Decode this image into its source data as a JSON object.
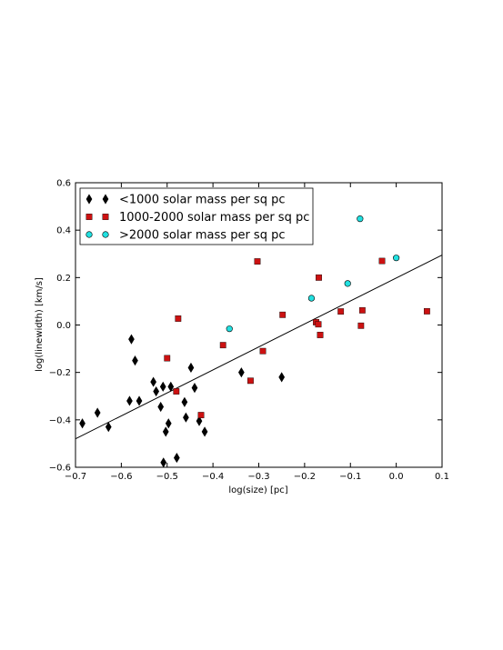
{
  "chart_data": {
    "type": "scatter",
    "xlabel": "log(size) [pc]",
    "ylabel": "log(linewidth) [km/s]",
    "xlim": [
      -0.7,
      0.1
    ],
    "ylim": [
      -0.6,
      0.6
    ],
    "xticks": [
      "−0.7",
      "−0.6",
      "−0.5",
      "−0.4",
      "−0.3",
      "−0.2",
      "−0.1",
      "0.0",
      "0.1"
    ],
    "yticks": [
      "−0.6",
      "−0.4",
      "−0.2",
      "0.0",
      "0.2",
      "0.4",
      "0.6"
    ],
    "grid": false,
    "legend_position": "top-left",
    "series": [
      {
        "name": "<1000 solar mass per sq pc",
        "marker": "diamond",
        "color": "#000000",
        "points": [
          [
            -0.685,
            -0.415
          ],
          [
            -0.652,
            -0.37
          ],
          [
            -0.628,
            -0.43
          ],
          [
            -0.582,
            -0.32
          ],
          [
            -0.578,
            -0.06
          ],
          [
            -0.57,
            -0.15
          ],
          [
            -0.561,
            -0.32
          ],
          [
            -0.53,
            -0.24
          ],
          [
            -0.524,
            -0.28
          ],
          [
            -0.514,
            -0.345
          ],
          [
            -0.509,
            -0.26
          ],
          [
            -0.508,
            -0.58
          ],
          [
            -0.503,
            -0.45
          ],
          [
            -0.497,
            -0.415
          ],
          [
            -0.492,
            -0.26
          ],
          [
            -0.479,
            -0.56
          ],
          [
            -0.462,
            -0.325
          ],
          [
            -0.459,
            -0.39
          ],
          [
            -0.448,
            -0.18
          ],
          [
            -0.44,
            -0.265
          ],
          [
            -0.43,
            -0.405
          ],
          [
            -0.418,
            -0.45
          ],
          [
            -0.338,
            -0.2
          ],
          [
            -0.25,
            -0.22
          ]
        ]
      },
      {
        "name": "1000-2000 solar mass per sq pc",
        "marker": "square",
        "color": "#cc1111",
        "points": [
          [
            -0.5,
            -0.14
          ],
          [
            -0.48,
            -0.28
          ],
          [
            -0.476,
            0.027
          ],
          [
            -0.426,
            -0.38
          ],
          [
            -0.378,
            -0.085
          ],
          [
            -0.318,
            -0.235
          ],
          [
            -0.303,
            0.268
          ],
          [
            -0.291,
            -0.11
          ],
          [
            -0.248,
            0.043
          ],
          [
            -0.175,
            0.012
          ],
          [
            -0.17,
            0.003
          ],
          [
            -0.169,
            0.2
          ],
          [
            -0.166,
            -0.042
          ],
          [
            -0.121,
            0.057
          ],
          [
            -0.077,
            -0.003
          ],
          [
            -0.074,
            0.062
          ],
          [
            -0.031,
            0.27
          ],
          [
            0.067,
            0.058
          ]
        ]
      },
      {
        "name": ">2000 solar mass per sq pc",
        "marker": "circle",
        "color": "#22e0e0",
        "points": [
          [
            -0.364,
            -0.016
          ],
          [
            -0.185,
            0.113
          ],
          [
            -0.106,
            0.175
          ],
          [
            -0.079,
            0.448
          ],
          [
            0.0,
            0.283
          ]
        ]
      }
    ],
    "fit_line": {
      "x": [
        -0.7,
        0.1
      ],
      "y": [
        -0.48,
        0.295
      ],
      "color": "#000000"
    }
  }
}
